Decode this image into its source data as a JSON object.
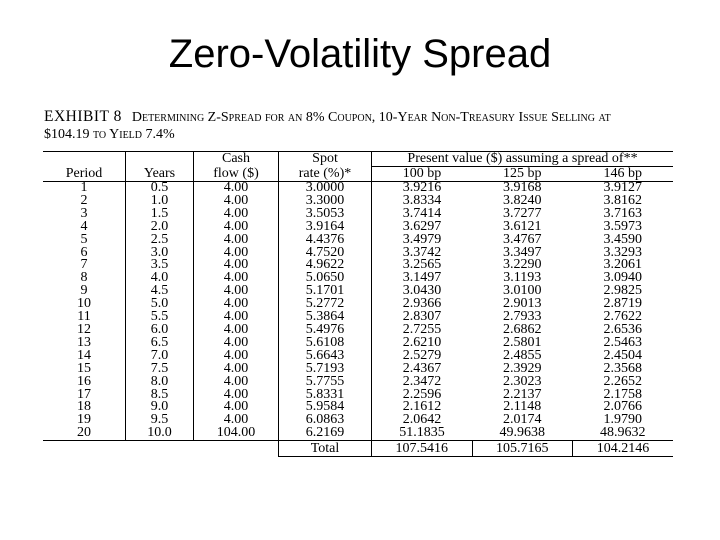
{
  "slide": {
    "title": "Zero-Volatility Spread"
  },
  "exhibit": {
    "label": "EXHIBIT 8",
    "description": "Determining Z-Spread for an 8% Coupon, 10-Year Non-Treasury Issue Selling at",
    "description_line2": "$104.19 to Yield 7.4%"
  },
  "table": {
    "header": {
      "period": "Period",
      "years": "Years",
      "cash_top": "Cash",
      "cash_bottom": "flow ($)",
      "spot_top": "Spot",
      "spot_bottom": "rate (%)*",
      "pv_group": "Present value ($) assuming a spread of**",
      "spread_1": "100 bp",
      "spread_2": "125 bp",
      "spread_3": "146 bp"
    },
    "rows": [
      [
        "1",
        "0.5",
        "4.00",
        "3.0000",
        "3.9216",
        "3.9168",
        "3.9127"
      ],
      [
        "2",
        "1.0",
        "4.00",
        "3.3000",
        "3.8334",
        "3.8240",
        "3.8162"
      ],
      [
        "3",
        "1.5",
        "4.00",
        "3.5053",
        "3.7414",
        "3.7277",
        "3.7163"
      ],
      [
        "4",
        "2.0",
        "4.00",
        "3.9164",
        "3.6297",
        "3.6121",
        "3.5973"
      ],
      [
        "5",
        "2.5",
        "4.00",
        "4.4376",
        "3.4979",
        "3.4767",
        "3.4590"
      ],
      [
        "6",
        "3.0",
        "4.00",
        "4.7520",
        "3.3742",
        "3.3497",
        "3.3293"
      ],
      [
        "7",
        "3.5",
        "4.00",
        "4.9622",
        "3.2565",
        "3.2290",
        "3.2061"
      ],
      [
        "8",
        "4.0",
        "4.00",
        "5.0650",
        "3.1497",
        "3.1193",
        "3.0940"
      ],
      [
        "9",
        "4.5",
        "4.00",
        "5.1701",
        "3.0430",
        "3.0100",
        "2.9825"
      ],
      [
        "10",
        "5.0",
        "4.00",
        "5.2772",
        "2.9366",
        "2.9013",
        "2.8719"
      ],
      [
        "11",
        "5.5",
        "4.00",
        "5.3864",
        "2.8307",
        "2.7933",
        "2.7622"
      ],
      [
        "12",
        "6.0",
        "4.00",
        "5.4976",
        "2.7255",
        "2.6862",
        "2.6536"
      ],
      [
        "13",
        "6.5",
        "4.00",
        "5.6108",
        "2.6210",
        "2.5801",
        "2.5463"
      ],
      [
        "14",
        "7.0",
        "4.00",
        "5.6643",
        "2.5279",
        "2.4855",
        "2.4504"
      ],
      [
        "15",
        "7.5",
        "4.00",
        "5.7193",
        "2.4367",
        "2.3929",
        "2.3568"
      ],
      [
        "16",
        "8.0",
        "4.00",
        "5.7755",
        "2.3472",
        "2.3023",
        "2.2652"
      ],
      [
        "17",
        "8.5",
        "4.00",
        "5.8331",
        "2.2596",
        "2.2137",
        "2.1758"
      ],
      [
        "18",
        "9.0",
        "4.00",
        "5.9584",
        "2.1612",
        "2.1148",
        "2.0766"
      ],
      [
        "19",
        "9.5",
        "4.00",
        "6.0863",
        "2.0642",
        "2.0174",
        "1.9790"
      ],
      [
        "20",
        "10.0",
        "104.00",
        "6.2169",
        "51.1835",
        "49.9638",
        "48.9632"
      ]
    ],
    "total": {
      "label": "Total",
      "pv_100": "107.5416",
      "pv_125": "105.7165",
      "pv_146": "104.2146"
    }
  }
}
